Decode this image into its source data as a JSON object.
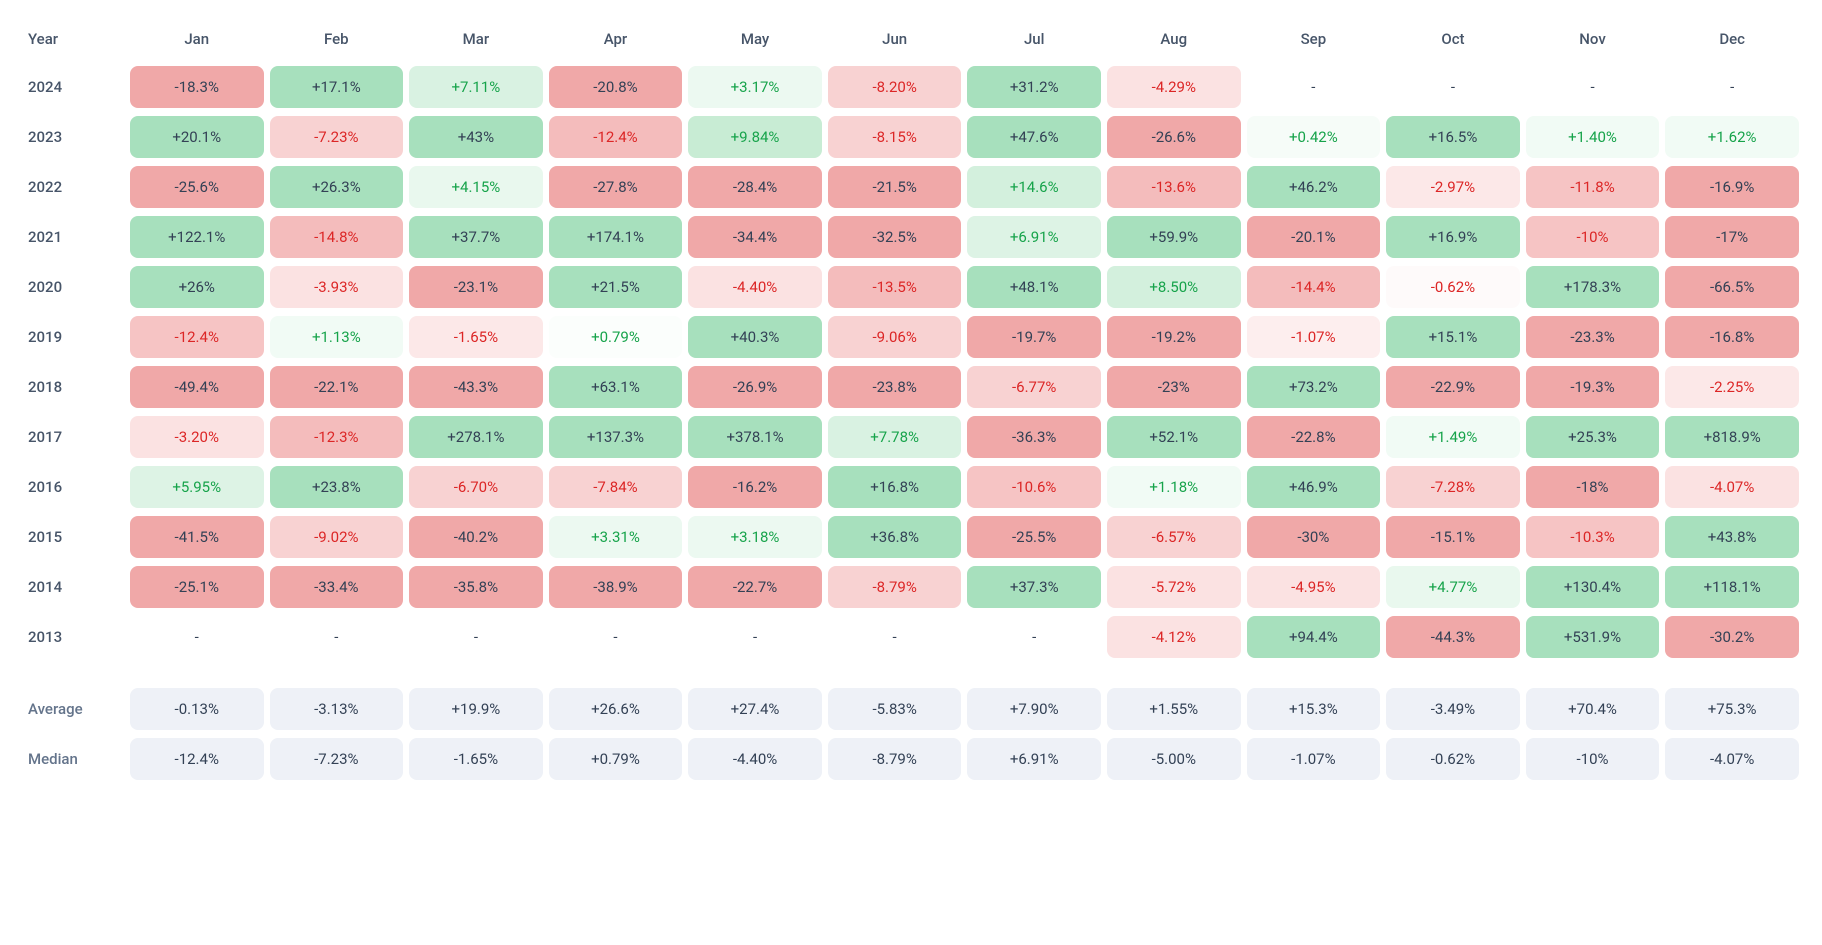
{
  "heatmap": {
    "type": "heatmap-table",
    "header_color": "#475569",
    "text_color_dark": "#334155",
    "background": "#ffffff",
    "cell_border_radius": 8,
    "cell_fontsize": 15,
    "header_fontsize": 15,
    "color_scale": {
      "positive_strong": "#a7e0bd",
      "positive_mid": "#c8ecd4",
      "positive_light": "#e9f8ee",
      "negative_strong": "#f0a8a8",
      "negative_mid": "#f6c4c4",
      "negative_light": "#fce8e8",
      "neutral": "#ffffff",
      "summary_bg": "#eef1f7"
    },
    "columns": [
      "Year",
      "Jan",
      "Feb",
      "Mar",
      "Apr",
      "May",
      "Jun",
      "Jul",
      "Aug",
      "Sep",
      "Oct",
      "Nov",
      "Dec"
    ],
    "rows": [
      {
        "year": "2024",
        "cells": [
          {
            "t": "-18.3%",
            "bg": "#f0a8a8",
            "fg": "#334155"
          },
          {
            "t": "+17.1%",
            "bg": "#a7e0bd",
            "fg": "#334155"
          },
          {
            "t": "+7.11%",
            "bg": "#d9f2e2",
            "fg": "#16a34a"
          },
          {
            "t": "-20.8%",
            "bg": "#f0a8a8",
            "fg": "#334155"
          },
          {
            "t": "+3.17%",
            "bg": "#ecf9f1",
            "fg": "#16a34a"
          },
          {
            "t": "-8.20%",
            "bg": "#f8d2d2",
            "fg": "#dc2626"
          },
          {
            "t": "+31.2%",
            "bg": "#a7e0bd",
            "fg": "#334155"
          },
          {
            "t": "-4.29%",
            "bg": "#fbe2e2",
            "fg": "#dc2626"
          },
          {
            "t": "-",
            "bg": "#ffffff",
            "fg": "#334155"
          },
          {
            "t": "-",
            "bg": "#ffffff",
            "fg": "#334155"
          },
          {
            "t": "-",
            "bg": "#ffffff",
            "fg": "#334155"
          },
          {
            "t": "-",
            "bg": "#ffffff",
            "fg": "#334155"
          }
        ]
      },
      {
        "year": "2023",
        "cells": [
          {
            "t": "+20.1%",
            "bg": "#a7e0bd",
            "fg": "#334155"
          },
          {
            "t": "-7.23%",
            "bg": "#f8d2d2",
            "fg": "#dc2626"
          },
          {
            "t": "+43%",
            "bg": "#a7e0bd",
            "fg": "#334155"
          },
          {
            "t": "-12.4%",
            "bg": "#f4bcbc",
            "fg": "#dc2626"
          },
          {
            "t": "+9.84%",
            "bg": "#c8ecd4",
            "fg": "#16a34a"
          },
          {
            "t": "-8.15%",
            "bg": "#f8d2d2",
            "fg": "#dc2626"
          },
          {
            "t": "+47.6%",
            "bg": "#a7e0bd",
            "fg": "#334155"
          },
          {
            "t": "-26.6%",
            "bg": "#f0a8a8",
            "fg": "#334155"
          },
          {
            "t": "+0.42%",
            "bg": "#f6fcf8",
            "fg": "#16a34a"
          },
          {
            "t": "+16.5%",
            "bg": "#a7e0bd",
            "fg": "#334155"
          },
          {
            "t": "+1.40%",
            "bg": "#f1fbf5",
            "fg": "#16a34a"
          },
          {
            "t": "+1.62%",
            "bg": "#f1fbf5",
            "fg": "#16a34a"
          }
        ]
      },
      {
        "year": "2022",
        "cells": [
          {
            "t": "-25.6%",
            "bg": "#f0a8a8",
            "fg": "#334155"
          },
          {
            "t": "+26.3%",
            "bg": "#a7e0bd",
            "fg": "#334155"
          },
          {
            "t": "+4.15%",
            "bg": "#e9f8ee",
            "fg": "#16a34a"
          },
          {
            "t": "-27.8%",
            "bg": "#f0a8a8",
            "fg": "#334155"
          },
          {
            "t": "-28.4%",
            "bg": "#f0a8a8",
            "fg": "#334155"
          },
          {
            "t": "-21.5%",
            "bg": "#f0a8a8",
            "fg": "#334155"
          },
          {
            "t": "+14.6%",
            "bg": "#d3f0dd",
            "fg": "#16a34a"
          },
          {
            "t": "-13.6%",
            "bg": "#f4bcbc",
            "fg": "#dc2626"
          },
          {
            "t": "+46.2%",
            "bg": "#a7e0bd",
            "fg": "#334155"
          },
          {
            "t": "-2.97%",
            "bg": "#fce8e8",
            "fg": "#dc2626"
          },
          {
            "t": "-11.8%",
            "bg": "#f6c4c4",
            "fg": "#dc2626"
          },
          {
            "t": "-16.9%",
            "bg": "#f0a8a8",
            "fg": "#334155"
          }
        ]
      },
      {
        "year": "2021",
        "cells": [
          {
            "t": "+122.1%",
            "bg": "#a7e0bd",
            "fg": "#334155"
          },
          {
            "t": "-14.8%",
            "bg": "#f4bcbc",
            "fg": "#dc2626"
          },
          {
            "t": "+37.7%",
            "bg": "#a7e0bd",
            "fg": "#334155"
          },
          {
            "t": "+174.1%",
            "bg": "#a7e0bd",
            "fg": "#334155"
          },
          {
            "t": "-34.4%",
            "bg": "#f0a8a8",
            "fg": "#334155"
          },
          {
            "t": "-32.5%",
            "bg": "#f0a8a8",
            "fg": "#334155"
          },
          {
            "t": "+6.91%",
            "bg": "#ddf3e5",
            "fg": "#16a34a"
          },
          {
            "t": "+59.9%",
            "bg": "#a7e0bd",
            "fg": "#334155"
          },
          {
            "t": "-20.1%",
            "bg": "#f0a8a8",
            "fg": "#334155"
          },
          {
            "t": "+16.9%",
            "bg": "#a7e0bd",
            "fg": "#334155"
          },
          {
            "t": "-10%",
            "bg": "#f6c4c4",
            "fg": "#dc2626"
          },
          {
            "t": "-17%",
            "bg": "#f0a8a8",
            "fg": "#334155"
          }
        ]
      },
      {
        "year": "2020",
        "cells": [
          {
            "t": "+26%",
            "bg": "#a7e0bd",
            "fg": "#334155"
          },
          {
            "t": "-3.93%",
            "bg": "#fbe2e2",
            "fg": "#dc2626"
          },
          {
            "t": "-23.1%",
            "bg": "#f0a8a8",
            "fg": "#334155"
          },
          {
            "t": "+21.5%",
            "bg": "#a7e0bd",
            "fg": "#334155"
          },
          {
            "t": "-4.40%",
            "bg": "#fbe2e2",
            "fg": "#dc2626"
          },
          {
            "t": "-13.5%",
            "bg": "#f4bcbc",
            "fg": "#dc2626"
          },
          {
            "t": "+48.1%",
            "bg": "#a7e0bd",
            "fg": "#334155"
          },
          {
            "t": "+8.50%",
            "bg": "#d3f0dd",
            "fg": "#16a34a"
          },
          {
            "t": "-14.4%",
            "bg": "#f4bcbc",
            "fg": "#dc2626"
          },
          {
            "t": "-0.62%",
            "bg": "#fefafa",
            "fg": "#dc2626"
          },
          {
            "t": "+178.3%",
            "bg": "#a7e0bd",
            "fg": "#334155"
          },
          {
            "t": "-66.5%",
            "bg": "#f0a8a8",
            "fg": "#334155"
          }
        ]
      },
      {
        "year": "2019",
        "cells": [
          {
            "t": "-12.4%",
            "bg": "#f6c4c4",
            "fg": "#dc2626"
          },
          {
            "t": "+1.13%",
            "bg": "#f1fbf5",
            "fg": "#16a34a"
          },
          {
            "t": "-1.65%",
            "bg": "#fce8e8",
            "fg": "#dc2626"
          },
          {
            "t": "+0.79%",
            "bg": "#fbfefc",
            "fg": "#16a34a"
          },
          {
            "t": "+40.3%",
            "bg": "#a7e0bd",
            "fg": "#334155"
          },
          {
            "t": "-9.06%",
            "bg": "#f8d2d2",
            "fg": "#dc2626"
          },
          {
            "t": "-19.7%",
            "bg": "#f0a8a8",
            "fg": "#334155"
          },
          {
            "t": "-19.2%",
            "bg": "#f0a8a8",
            "fg": "#334155"
          },
          {
            "t": "-1.07%",
            "bg": "#fdeeee",
            "fg": "#dc2626"
          },
          {
            "t": "+15.1%",
            "bg": "#a7e0bd",
            "fg": "#334155"
          },
          {
            "t": "-23.3%",
            "bg": "#f0a8a8",
            "fg": "#334155"
          },
          {
            "t": "-16.8%",
            "bg": "#f0a8a8",
            "fg": "#334155"
          }
        ]
      },
      {
        "year": "2018",
        "cells": [
          {
            "t": "-49.4%",
            "bg": "#f0a8a8",
            "fg": "#334155"
          },
          {
            "t": "-22.1%",
            "bg": "#f0a8a8",
            "fg": "#334155"
          },
          {
            "t": "-43.3%",
            "bg": "#f0a8a8",
            "fg": "#334155"
          },
          {
            "t": "+63.1%",
            "bg": "#a7e0bd",
            "fg": "#334155"
          },
          {
            "t": "-26.9%",
            "bg": "#f0a8a8",
            "fg": "#334155"
          },
          {
            "t": "-23.8%",
            "bg": "#f0a8a8",
            "fg": "#334155"
          },
          {
            "t": "-6.77%",
            "bg": "#f8d2d2",
            "fg": "#dc2626"
          },
          {
            "t": "-23%",
            "bg": "#f0a8a8",
            "fg": "#334155"
          },
          {
            "t": "+73.2%",
            "bg": "#a7e0bd",
            "fg": "#334155"
          },
          {
            "t": "-22.9%",
            "bg": "#f0a8a8",
            "fg": "#334155"
          },
          {
            "t": "-19.3%",
            "bg": "#f0a8a8",
            "fg": "#334155"
          },
          {
            "t": "-2.25%",
            "bg": "#fce8e8",
            "fg": "#dc2626"
          }
        ]
      },
      {
        "year": "2017",
        "cells": [
          {
            "t": "-3.20%",
            "bg": "#fbe2e2",
            "fg": "#dc2626"
          },
          {
            "t": "-12.3%",
            "bg": "#f4bcbc",
            "fg": "#dc2626"
          },
          {
            "t": "+278.1%",
            "bg": "#a7e0bd",
            "fg": "#334155"
          },
          {
            "t": "+137.3%",
            "bg": "#a7e0bd",
            "fg": "#334155"
          },
          {
            "t": "+378.1%",
            "bg": "#a7e0bd",
            "fg": "#334155"
          },
          {
            "t": "+7.78%",
            "bg": "#d9f2e2",
            "fg": "#16a34a"
          },
          {
            "t": "-36.3%",
            "bg": "#f0a8a8",
            "fg": "#334155"
          },
          {
            "t": "+52.1%",
            "bg": "#a7e0bd",
            "fg": "#334155"
          },
          {
            "t": "-22.8%",
            "bg": "#f0a8a8",
            "fg": "#334155"
          },
          {
            "t": "+1.49%",
            "bg": "#f1fbf5",
            "fg": "#16a34a"
          },
          {
            "t": "+25.3%",
            "bg": "#a7e0bd",
            "fg": "#334155"
          },
          {
            "t": "+818.9%",
            "bg": "#a7e0bd",
            "fg": "#334155"
          }
        ]
      },
      {
        "year": "2016",
        "cells": [
          {
            "t": "+5.95%",
            "bg": "#ddf3e5",
            "fg": "#16a34a"
          },
          {
            "t": "+23.8%",
            "bg": "#a7e0bd",
            "fg": "#334155"
          },
          {
            "t": "-6.70%",
            "bg": "#f8d2d2",
            "fg": "#dc2626"
          },
          {
            "t": "-7.84%",
            "bg": "#f8d2d2",
            "fg": "#dc2626"
          },
          {
            "t": "-16.2%",
            "bg": "#f0a8a8",
            "fg": "#334155"
          },
          {
            "t": "+16.8%",
            "bg": "#a7e0bd",
            "fg": "#334155"
          },
          {
            "t": "-10.6%",
            "bg": "#f6c4c4",
            "fg": "#dc2626"
          },
          {
            "t": "+1.18%",
            "bg": "#f1fbf5",
            "fg": "#16a34a"
          },
          {
            "t": "+46.9%",
            "bg": "#a7e0bd",
            "fg": "#334155"
          },
          {
            "t": "-7.28%",
            "bg": "#f8d2d2",
            "fg": "#dc2626"
          },
          {
            "t": "-18%",
            "bg": "#f0a8a8",
            "fg": "#334155"
          },
          {
            "t": "-4.07%",
            "bg": "#fbe2e2",
            "fg": "#dc2626"
          }
        ]
      },
      {
        "year": "2015",
        "cells": [
          {
            "t": "-41.5%",
            "bg": "#f0a8a8",
            "fg": "#334155"
          },
          {
            "t": "-9.02%",
            "bg": "#f8d2d2",
            "fg": "#dc2626"
          },
          {
            "t": "-40.2%",
            "bg": "#f0a8a8",
            "fg": "#334155"
          },
          {
            "t": "+3.31%",
            "bg": "#ecf9f1",
            "fg": "#16a34a"
          },
          {
            "t": "+3.18%",
            "bg": "#ecf9f1",
            "fg": "#16a34a"
          },
          {
            "t": "+36.8%",
            "bg": "#a7e0bd",
            "fg": "#334155"
          },
          {
            "t": "-25.5%",
            "bg": "#f0a8a8",
            "fg": "#334155"
          },
          {
            "t": "-6.57%",
            "bg": "#f8d2d2",
            "fg": "#dc2626"
          },
          {
            "t": "-30%",
            "bg": "#f0a8a8",
            "fg": "#334155"
          },
          {
            "t": "-15.1%",
            "bg": "#f0a8a8",
            "fg": "#334155"
          },
          {
            "t": "-10.3%",
            "bg": "#f6c4c4",
            "fg": "#dc2626"
          },
          {
            "t": "+43.8%",
            "bg": "#a7e0bd",
            "fg": "#334155"
          }
        ]
      },
      {
        "year": "2014",
        "cells": [
          {
            "t": "-25.1%",
            "bg": "#f0a8a8",
            "fg": "#334155"
          },
          {
            "t": "-33.4%",
            "bg": "#f0a8a8",
            "fg": "#334155"
          },
          {
            "t": "-35.8%",
            "bg": "#f0a8a8",
            "fg": "#334155"
          },
          {
            "t": "-38.9%",
            "bg": "#f0a8a8",
            "fg": "#334155"
          },
          {
            "t": "-22.7%",
            "bg": "#f0a8a8",
            "fg": "#334155"
          },
          {
            "t": "-8.79%",
            "bg": "#f8d2d2",
            "fg": "#dc2626"
          },
          {
            "t": "+37.3%",
            "bg": "#a7e0bd",
            "fg": "#334155"
          },
          {
            "t": "-5.72%",
            "bg": "#fbe2e2",
            "fg": "#dc2626"
          },
          {
            "t": "-4.95%",
            "bg": "#fbe2e2",
            "fg": "#dc2626"
          },
          {
            "t": "+4.77%",
            "bg": "#e9f8ee",
            "fg": "#16a34a"
          },
          {
            "t": "+130.4%",
            "bg": "#a7e0bd",
            "fg": "#334155"
          },
          {
            "t": "+118.1%",
            "bg": "#a7e0bd",
            "fg": "#334155"
          }
        ]
      },
      {
        "year": "2013",
        "cells": [
          {
            "t": "-",
            "bg": "#ffffff",
            "fg": "#334155"
          },
          {
            "t": "-",
            "bg": "#ffffff",
            "fg": "#334155"
          },
          {
            "t": "-",
            "bg": "#ffffff",
            "fg": "#334155"
          },
          {
            "t": "-",
            "bg": "#ffffff",
            "fg": "#334155"
          },
          {
            "t": "-",
            "bg": "#ffffff",
            "fg": "#334155"
          },
          {
            "t": "-",
            "bg": "#ffffff",
            "fg": "#334155"
          },
          {
            "t": "-",
            "bg": "#ffffff",
            "fg": "#334155"
          },
          {
            "t": "-4.12%",
            "bg": "#fbe2e2",
            "fg": "#dc2626"
          },
          {
            "t": "+94.4%",
            "bg": "#a7e0bd",
            "fg": "#334155"
          },
          {
            "t": "-44.3%",
            "bg": "#f0a8a8",
            "fg": "#334155"
          },
          {
            "t": "+531.9%",
            "bg": "#a7e0bd",
            "fg": "#334155"
          },
          {
            "t": "-30.2%",
            "bg": "#f0a8a8",
            "fg": "#334155"
          }
        ]
      }
    ],
    "summary": [
      {
        "label": "Average",
        "cells": [
          {
            "t": "-0.13%"
          },
          {
            "t": "-3.13%"
          },
          {
            "t": "+19.9%"
          },
          {
            "t": "+26.6%"
          },
          {
            "t": "+27.4%"
          },
          {
            "t": "-5.83%"
          },
          {
            "t": "+7.90%"
          },
          {
            "t": "+1.55%"
          },
          {
            "t": "+15.3%"
          },
          {
            "t": "-3.49%"
          },
          {
            "t": "+70.4%"
          },
          {
            "t": "+75.3%"
          }
        ]
      },
      {
        "label": "Median",
        "cells": [
          {
            "t": "-12.4%"
          },
          {
            "t": "-7.23%"
          },
          {
            "t": "-1.65%"
          },
          {
            "t": "+0.79%"
          },
          {
            "t": "-4.40%"
          },
          {
            "t": "-8.79%"
          },
          {
            "t": "+6.91%"
          },
          {
            "t": "-5.00%"
          },
          {
            "t": "-1.07%"
          },
          {
            "t": "-0.62%"
          },
          {
            "t": "-10%"
          },
          {
            "t": "-4.07%"
          }
        ]
      }
    ]
  }
}
